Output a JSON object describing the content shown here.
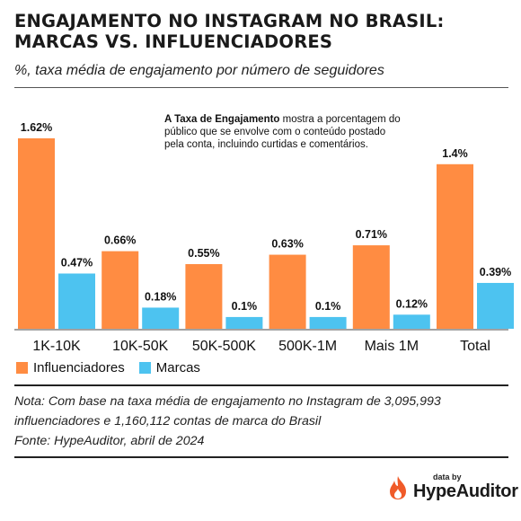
{
  "title": "ENGAJAMENTO NO INSTAGRAM NO BRASIL: MARCAS VS. INFLUENCIADORES",
  "subtitle": "%, taxa média de engajamento por número de seguidores",
  "callout": {
    "bold": "A Taxa de Engajamento",
    "text": " mostra a porcentagem do público que se envolve com o conteúdo postado pela conta, incluindo curtidas e comentários."
  },
  "legend": {
    "influencers": "Influenciadores",
    "brands": "Marcas"
  },
  "note": {
    "line1": "Nota: Com base na taxa média de engajamento no Instagram de 3,095,993",
    "line2": "influenciadores e 1,160,112 contas de marca do Brasil",
    "line3": "Fonte: HypeAuditor, abril de 2024"
  },
  "brand": {
    "small": "data by",
    "name": "HypeAuditor",
    "icon": "flame-icon"
  },
  "colors": {
    "influencers": "#FF8C42",
    "brands": "#4DC3F0",
    "flame": "#F05A28"
  },
  "chart_data": {
    "type": "bar",
    "categories": [
      "1K-10K",
      "10K-50K",
      "50K-500K",
      "500K-1M",
      "Mais 1M",
      "Total"
    ],
    "series": [
      {
        "name": "Influenciadores",
        "values": [
          1.62,
          0.66,
          0.55,
          0.63,
          0.71,
          1.4
        ],
        "labels": [
          "1.62%",
          "0.66%",
          "0.55%",
          "0.63%",
          "0.71%",
          "1.4%"
        ]
      },
      {
        "name": "Marcas",
        "values": [
          0.47,
          0.18,
          0.1,
          0.1,
          0.12,
          0.39
        ],
        "labels": [
          "0.47%",
          "0.18%",
          "0.1%",
          "0.1%",
          "0.12%",
          "0.39%"
        ]
      }
    ],
    "ylim": [
      0,
      1.62
    ],
    "grid": false,
    "legend_position": "bottom-left"
  }
}
